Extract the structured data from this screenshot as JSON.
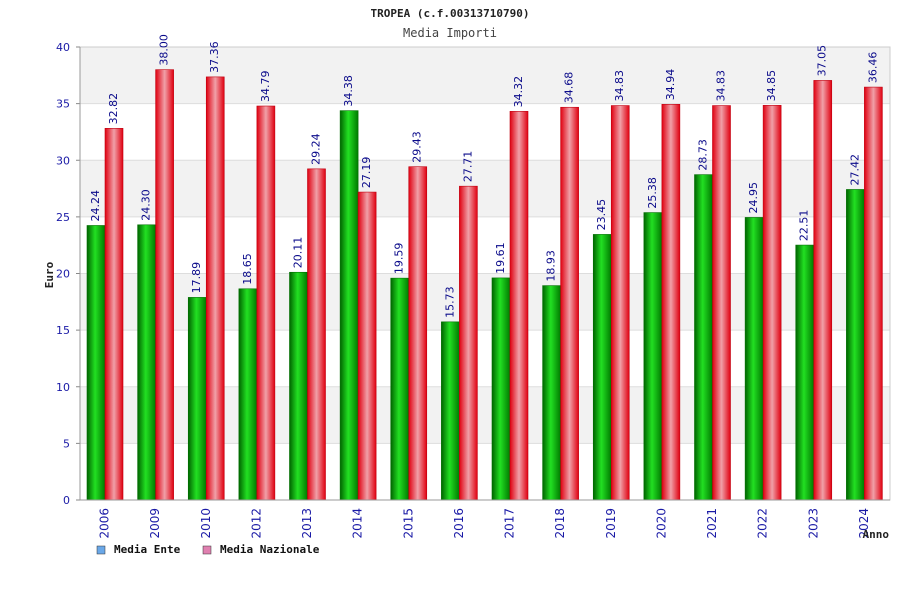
{
  "chart_data": {
    "type": "bar",
    "title": "TROPEA (c.f.00313710790)",
    "subtitle": "Media Importi",
    "ylabel": "Euro",
    "xlabel": "Anno",
    "ylim": [
      0,
      40
    ],
    "yticks": [
      0,
      5,
      10,
      15,
      20,
      25,
      30,
      35,
      40
    ],
    "grid": true,
    "legend_position": "bottom-left",
    "categories": [
      "2006",
      "2009",
      "2010",
      "2012",
      "2013",
      "2014",
      "2015",
      "2016",
      "2017",
      "2018",
      "2019",
      "2020",
      "2021",
      "2022",
      "2023",
      "2024"
    ],
    "series": [
      {
        "name": "Media Ente",
        "color": "#00a000",
        "legend_color": "#6aa8e8",
        "values": [
          24.24,
          24.3,
          17.89,
          18.65,
          20.11,
          34.38,
          19.59,
          15.73,
          19.61,
          18.93,
          23.45,
          25.38,
          28.73,
          24.95,
          22.51,
          27.42
        ],
        "labels": [
          "24.24",
          "24.30",
          "17.89",
          "18.65",
          "20.11",
          "34.38",
          "19.59",
          "15.73",
          "19.61",
          "18.93",
          "23.45",
          "25.38",
          "28.73",
          "24.95",
          "22.51",
          "27.42"
        ]
      },
      {
        "name": "Media Nazionale",
        "color": "#e01020",
        "legend_color": "#e080b0",
        "values": [
          32.82,
          38.0,
          37.36,
          34.79,
          29.24,
          27.19,
          29.43,
          27.71,
          34.32,
          34.68,
          34.83,
          34.94,
          34.83,
          34.85,
          37.05,
          36.46
        ],
        "labels": [
          "32.82",
          "38.00",
          "37.36",
          "34.79",
          "29.24",
          "27.19",
          "29.43",
          "27.71",
          "34.32",
          "34.68",
          "34.83",
          "34.94",
          "34.83",
          "34.85",
          "37.05",
          "36.46"
        ]
      }
    ]
  }
}
